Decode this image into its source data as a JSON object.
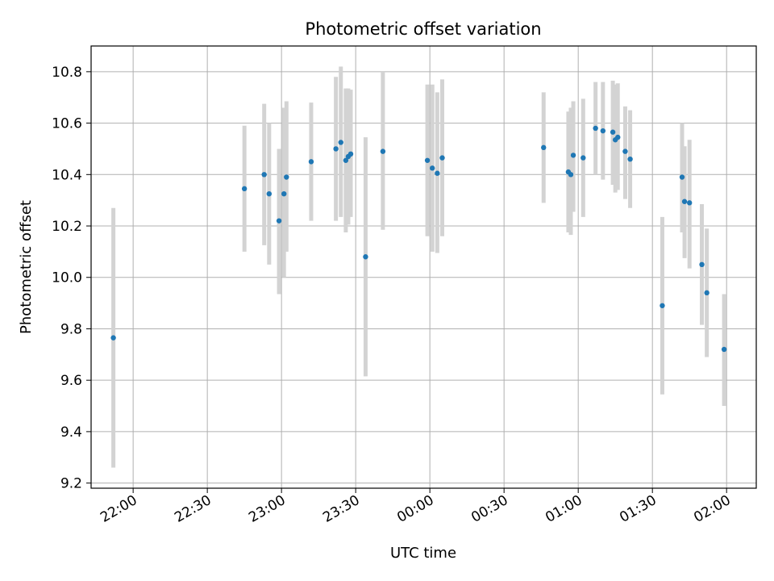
{
  "chart_data": {
    "type": "scatter",
    "title": "Photometric offset variation",
    "xlabel": "UTC time",
    "ylabel": "Photometric offset",
    "x_unit": "minutes",
    "xlim": [
      "21:43",
      "02:12"
    ],
    "ylim": [
      9.18,
      10.9
    ],
    "x_ticks": [
      "22:00",
      "22:30",
      "23:00",
      "23:30",
      "00:00",
      "00:30",
      "01:00",
      "01:30",
      "02:00"
    ],
    "y_ticks": [
      "9.2",
      "9.4",
      "9.6",
      "9.8",
      "10.0",
      "10.2",
      "10.4",
      "10.6",
      "10.8"
    ],
    "grid": true,
    "point_color": "#1f77b4",
    "errorbar_color": "#d3d3d3",
    "points": [
      {
        "x": "21:52",
        "y": 9.765,
        "lo": 9.26,
        "hi": 10.27
      },
      {
        "x": "22:45",
        "y": 10.345,
        "lo": 10.1,
        "hi": 10.59
      },
      {
        "x": "22:53",
        "y": 10.4,
        "lo": 10.125,
        "hi": 10.675
      },
      {
        "x": "22:55",
        "y": 10.325,
        "lo": 10.05,
        "hi": 10.6
      },
      {
        "x": "22:59",
        "y": 10.22,
        "lo": 9.935,
        "hi": 10.5
      },
      {
        "x": "23:01",
        "y": 10.325,
        "lo": 10.0,
        "hi": 10.66
      },
      {
        "x": "23:02",
        "y": 10.39,
        "lo": 10.1,
        "hi": 10.685
      },
      {
        "x": "23:12",
        "y": 10.45,
        "lo": 10.22,
        "hi": 10.68
      },
      {
        "x": "23:22",
        "y": 10.5,
        "lo": 10.22,
        "hi": 10.78
      },
      {
        "x": "23:24",
        "y": 10.525,
        "lo": 10.235,
        "hi": 10.82
      },
      {
        "x": "23:26",
        "y": 10.455,
        "lo": 10.175,
        "hi": 10.735
      },
      {
        "x": "23:27",
        "y": 10.47,
        "lo": 10.205,
        "hi": 10.735
      },
      {
        "x": "23:28",
        "y": 10.48,
        "lo": 10.235,
        "hi": 10.73
      },
      {
        "x": "23:34",
        "y": 10.08,
        "lo": 9.615,
        "hi": 10.545
      },
      {
        "x": "23:41",
        "y": 10.49,
        "lo": 10.185,
        "hi": 10.8
      },
      {
        "x": "23:59",
        "y": 10.455,
        "lo": 10.16,
        "hi": 10.75
      },
      {
        "x": "00:01",
        "y": 10.425,
        "lo": 10.1,
        "hi": 10.75
      },
      {
        "x": "00:03",
        "y": 10.405,
        "lo": 10.095,
        "hi": 10.72
      },
      {
        "x": "00:05",
        "y": 10.465,
        "lo": 10.16,
        "hi": 10.77
      },
      {
        "x": "00:46",
        "y": 10.505,
        "lo": 10.29,
        "hi": 10.72
      },
      {
        "x": "00:56",
        "y": 10.41,
        "lo": 10.175,
        "hi": 10.645
      },
      {
        "x": "00:57",
        "y": 10.4,
        "lo": 10.165,
        "hi": 10.66
      },
      {
        "x": "00:58",
        "y": 10.475,
        "lo": 10.255,
        "hi": 10.685
      },
      {
        "x": "01:02",
        "y": 10.465,
        "lo": 10.235,
        "hi": 10.695
      },
      {
        "x": "01:07",
        "y": 10.58,
        "lo": 10.4,
        "hi": 10.76
      },
      {
        "x": "01:10",
        "y": 10.57,
        "lo": 10.38,
        "hi": 10.76
      },
      {
        "x": "01:14",
        "y": 10.565,
        "lo": 10.36,
        "hi": 10.765
      },
      {
        "x": "01:15",
        "y": 10.535,
        "lo": 10.33,
        "hi": 10.75
      },
      {
        "x": "01:16",
        "y": 10.545,
        "lo": 10.34,
        "hi": 10.755
      },
      {
        "x": "01:19",
        "y": 10.49,
        "lo": 10.305,
        "hi": 10.665
      },
      {
        "x": "01:21",
        "y": 10.46,
        "lo": 10.27,
        "hi": 10.65
      },
      {
        "x": "01:34",
        "y": 9.89,
        "lo": 9.545,
        "hi": 10.235
      },
      {
        "x": "01:42",
        "y": 10.39,
        "lo": 10.175,
        "hi": 10.6
      },
      {
        "x": "01:43",
        "y": 10.295,
        "lo": 10.075,
        "hi": 10.51
      },
      {
        "x": "01:45",
        "y": 10.29,
        "lo": 10.035,
        "hi": 10.535
      },
      {
        "x": "01:50",
        "y": 10.05,
        "lo": 9.815,
        "hi": 10.285
      },
      {
        "x": "01:52",
        "y": 9.94,
        "lo": 9.69,
        "hi": 10.19
      },
      {
        "x": "01:59",
        "y": 9.72,
        "lo": 9.5,
        "hi": 9.935
      }
    ]
  }
}
